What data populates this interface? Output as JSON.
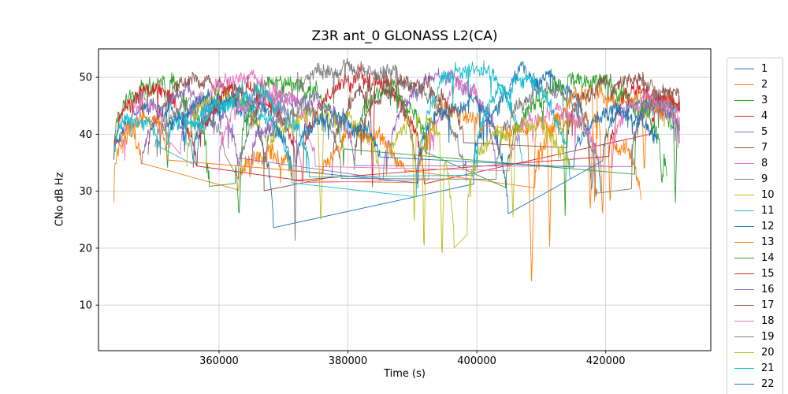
{
  "chart_data": {
    "type": "line",
    "title": "Z3R ant_0 GLONASS L2(CA)",
    "xlabel": "Time (s)",
    "ylabel": "CNo dB Hz",
    "xlim": [
      341300,
      436300
    ],
    "ylim": [
      2,
      55
    ],
    "xticks": [
      360000,
      380000,
      400000,
      420000
    ],
    "x_tick_labels": [
      "360000",
      "380000",
      "400000",
      "420000"
    ],
    "yticks": [
      10,
      20,
      30,
      40,
      50
    ],
    "y_tick_labels": [
      "10",
      "20",
      "30",
      "40",
      "50"
    ],
    "grid": true,
    "grid_color": "#cccccc",
    "spine_color": "#000000",
    "legend_position": "outside-right",
    "legend_note": "satellite slot numbers; entry 6 absent; entry 22 clipped by figure bottom edge",
    "units": {
      "x": "seconds of week",
      "y": "carrier-to-noise density dB-Hz"
    },
    "arc_format": "[t_start_s, t_end_s, value_start, value_peak, value_end] noisy satellite pass arc; consecutive arcs joined by straight connector lines",
    "dip_format": "[t_s, min_value, half_width_s] deep signal fade",
    "series": [
      {
        "name": "1",
        "color": "#1f77b4",
        "noise": 1.5,
        "arcs": [
          [
            343700,
            356000,
            36,
            45,
            34
          ],
          [
            356600,
            368500,
            34,
            46,
            21
          ],
          [
            399500,
            419300,
            33,
            50.5,
            27
          ]
        ],
        "dips": [
          [
            417800,
            30,
            500
          ]
        ]
      },
      {
        "name": "2",
        "color": "#ff7f0e",
        "noise": 1.7,
        "arcs": [
          [
            343700,
            348000,
            31,
            41,
            33
          ],
          [
            363000,
            371500,
            31,
            37.5,
            31
          ],
          [
            390900,
            401000,
            30,
            44,
            40
          ],
          [
            404500,
            425500,
            40,
            42,
            28
          ]
        ],
        "dips": [
          [
            408500,
            14,
            600
          ],
          [
            411300,
            20.5,
            400
          ],
          [
            417600,
            26,
            400
          ],
          [
            419500,
            25,
            400
          ],
          [
            420700,
            27,
            350
          ]
        ]
      },
      {
        "name": "3",
        "color": "#2ca02c",
        "noise": 1.7,
        "arcs": [
          [
            343700,
            358500,
            37,
            49,
            31
          ],
          [
            362500,
            379500,
            31,
            49.5,
            34
          ],
          [
            424500,
            431500,
            36,
            46,
            39
          ]
        ],
        "dips": [
          [
            352000,
            33,
            400
          ],
          [
            363100,
            25,
            500
          ],
          [
            430800,
            27,
            300
          ]
        ]
      },
      {
        "name": "4",
        "color": "#d62728",
        "noise": 1.6,
        "arcs": [
          [
            343700,
            356500,
            36,
            48,
            34
          ],
          [
            373000,
            392000,
            33,
            50.5,
            30
          ],
          [
            427000,
            431500,
            40,
            46,
            43
          ]
        ],
        "dips": [
          [
            383800,
            31,
            400
          ]
        ]
      },
      {
        "name": "5",
        "color": "#9467bd",
        "noise": 1.6,
        "arcs": [
          [
            348000,
            363000,
            34,
            46.5,
            33
          ],
          [
            385500,
            403000,
            32,
            50,
            33
          ]
        ],
        "dips": []
      },
      {
        "name": "7",
        "color": "#8c564b",
        "noise": 1.5,
        "arcs": [
          [
            349000,
            367000,
            36,
            50,
            35
          ],
          [
            377500,
            390900,
            34,
            49.5,
            28
          ]
        ],
        "dips": []
      },
      {
        "name": "8",
        "color": "#e377c2",
        "noise": 1.6,
        "arcs": [
          [
            345000,
            352500,
            38,
            45,
            36
          ],
          [
            354000,
            373000,
            36,
            49.5,
            30
          ],
          [
            392500,
            403500,
            33,
            48,
            34
          ]
        ],
        "dips": []
      },
      {
        "name": "9",
        "color": "#7f7f7f",
        "noise": 1.5,
        "arcs": [
          [
            350000,
            361000,
            37,
            45,
            35
          ],
          [
            363000,
            398500,
            33,
            51.5,
            30
          ]
        ],
        "dips": [
          [
            371800,
            21.7,
            400
          ]
        ]
      },
      {
        "name": "10",
        "color": "#bcbd22",
        "noise": 1.6,
        "arcs": [
          [
            355000,
            366500,
            34,
            47,
            40
          ],
          [
            368000,
            385000,
            38,
            43,
            31
          ]
        ],
        "dips": [
          [
            365300,
            41,
            300
          ],
          [
            375800,
            23.7,
            450
          ]
        ]
      },
      {
        "name": "11",
        "color": "#17becf",
        "noise": 1.5,
        "arcs": [
          [
            352000,
            371300,
            38,
            45,
            31
          ],
          [
            390600,
            407000,
            29.5,
            51.8,
            35
          ]
        ],
        "dips": []
      },
      {
        "name": "12",
        "color": "#1f77b4",
        "noise": 1.5,
        "arcs": [
          [
            352000,
            371300,
            40,
            46,
            30.8
          ],
          [
            390800,
            404900,
            30.8,
            46,
            25.4
          ],
          [
            419500,
            431500,
            36,
            45,
            43
          ]
        ],
        "dips": []
      },
      {
        "name": "13",
        "color": "#ff7f0e",
        "noise": 1.6,
        "arcs": [
          [
            345000,
            352000,
            36,
            43,
            35
          ],
          [
            376000,
            389000,
            33,
            40,
            32
          ],
          [
            409000,
            431500,
            32,
            47,
            44
          ]
        ],
        "dips": [
          [
            418300,
            27,
            400
          ],
          [
            426000,
            33,
            400
          ]
        ]
      },
      {
        "name": "14",
        "color": "#2ca02c",
        "noise": 1.7,
        "arcs": [
          [
            381000,
            392000,
            34,
            48,
            36
          ],
          [
            404500,
            429500,
            31,
            50,
            31
          ]
        ],
        "dips": [
          [
            413700,
            26,
            400
          ],
          [
            428700,
            31,
            350
          ],
          [
            430900,
            26,
            300
          ]
        ]
      },
      {
        "name": "15",
        "color": "#d62728",
        "noise": 1.6,
        "arcs": [
          [
            356000,
            372000,
            35,
            47,
            33
          ],
          [
            420500,
            431500,
            37,
            47,
            45
          ]
        ],
        "dips": []
      },
      {
        "name": "16",
        "color": "#9467bd",
        "noise": 1.6,
        "arcs": [
          [
            365000,
            381000,
            33,
            46,
            34
          ],
          [
            424000,
            431500,
            35,
            45,
            42
          ]
        ],
        "dips": []
      },
      {
        "name": "17",
        "color": "#8c564b",
        "noise": 1.5,
        "arcs": [
          [
            381000,
            398000,
            35,
            49,
            37
          ],
          [
            414000,
            431500,
            37,
            49.5,
            47
          ]
        ],
        "dips": []
      },
      {
        "name": "18",
        "color": "#e377c2",
        "noise": 1.7,
        "arcs": [
          [
            360000,
            375000,
            34,
            47,
            34
          ],
          [
            405000,
            419000,
            33,
            44,
            35
          ],
          [
            421000,
            431500,
            35,
            46,
            41
          ]
        ],
        "dips": []
      },
      {
        "name": "19",
        "color": "#7f7f7f",
        "noise": 1.5,
        "arcs": [
          [
            367000,
            379000,
            34,
            44,
            33
          ],
          [
            403000,
            418700,
            33,
            48,
            29
          ],
          [
            424000,
            431500,
            34,
            46,
            40
          ]
        ],
        "dips": [
          [
            418500,
            29,
            300
          ]
        ]
      },
      {
        "name": "20",
        "color": "#bcbd22",
        "noise": 1.7,
        "arcs": [
          [
            386000,
            396500,
            33,
            43,
            17
          ],
          [
            398500,
            414500,
            25,
            41,
            33
          ]
        ],
        "dips": [
          [
            390300,
            23.5,
            350
          ],
          [
            391800,
            18,
            350
          ],
          [
            394600,
            17.3,
            350
          ],
          [
            405600,
            25,
            400
          ]
        ]
      },
      {
        "name": "21",
        "color": "#17becf",
        "noise": 1.6,
        "arcs": [
          [
            343700,
            351000,
            37,
            43,
            36
          ],
          [
            356000,
            374000,
            35,
            47,
            34
          ],
          [
            399500,
            414500,
            33,
            49.5,
            30
          ]
        ],
        "dips": []
      },
      {
        "name": "22",
        "color": "#1f77b4",
        "noise": 1.5,
        "arcs": [
          [
            372000,
            385000,
            35,
            43,
            34
          ],
          [
            415000,
            428000,
            34,
            44,
            36
          ]
        ],
        "dips": []
      }
    ]
  }
}
